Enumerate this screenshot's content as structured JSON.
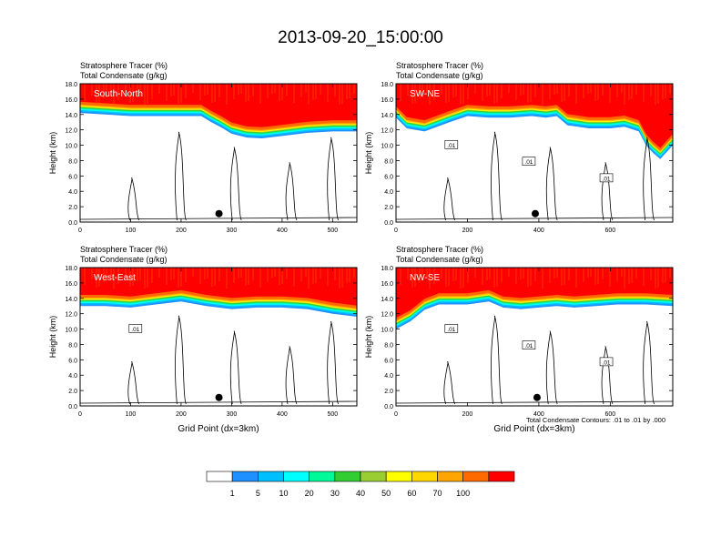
{
  "page_title": "2013-09-20_15:00:00",
  "colorbar": {
    "labels": [
      "1",
      "5",
      "10",
      "20",
      "30",
      "40",
      "50",
      "60",
      "70",
      "100"
    ],
    "colors": [
      "#ffffff",
      "#1e90ff",
      "#00bfff",
      "#00ffff",
      "#00fa9a",
      "#32cd32",
      "#9acd32",
      "#ffff00",
      "#ffd700",
      "#ffa500",
      "#ff6a00",
      "#ff0000"
    ]
  },
  "contour_note": "Total Condensate Contours: .01 to .01 by .000",
  "chart_data": [
    {
      "type": "heatmap",
      "panel": "South-North",
      "title_line1": "Stratosphere Tracer   (%)",
      "title_line2": "Total Condensate   (g/kg)",
      "ylabel": "Height (km)",
      "xlabel": "",
      "xlim": [
        0,
        548
      ],
      "ylim": [
        0,
        18
      ],
      "xticks": [
        "0",
        "100",
        "200",
        "300",
        "400",
        "500"
      ],
      "yticks": [
        "0.0",
        "2.0",
        "4.0",
        "6.0",
        "8.0",
        "10.0",
        "12.0",
        "14.0",
        "16.0",
        "18.0"
      ],
      "contour_labels": [],
      "marker_x": 275,
      "marker_y": 1.1,
      "tropopause": [
        [
          0,
          15.2
        ],
        [
          100,
          14.8
        ],
        [
          200,
          14.8
        ],
        [
          240,
          14.8
        ],
        [
          260,
          14.0
        ],
        [
          280,
          13.3
        ],
        [
          300,
          12.5
        ],
        [
          330,
          12.0
        ],
        [
          360,
          11.9
        ],
        [
          400,
          12.2
        ],
        [
          450,
          12.6
        ],
        [
          500,
          12.8
        ],
        [
          548,
          12.8
        ]
      ]
    },
    {
      "type": "heatmap",
      "panel": "SW-NE",
      "title_line1": "Stratosphere Tracer   (%)",
      "title_line2": "Total Condensate   (g/kg)",
      "ylabel": "Height (km)",
      "xlabel": "",
      "xlim": [
        0,
        775
      ],
      "ylim": [
        0,
        18
      ],
      "xticks": [
        "0",
        "200",
        "400",
        "600"
      ],
      "yticks": [
        "0.0",
        "2.0",
        "4.0",
        "6.0",
        "8.0",
        "10.0",
        "12.0",
        "14.0",
        "16.0",
        "18.0"
      ],
      "contour_labels": [
        ".01",
        ".01",
        ".01"
      ],
      "marker_x": 390,
      "marker_y": 1.1,
      "tropopause": [
        [
          0,
          14.6
        ],
        [
          30,
          13.2
        ],
        [
          80,
          12.8
        ],
        [
          150,
          14.0
        ],
        [
          200,
          14.8
        ],
        [
          260,
          14.6
        ],
        [
          320,
          14.6
        ],
        [
          380,
          14.8
        ],
        [
          420,
          14.6
        ],
        [
          450,
          14.8
        ],
        [
          480,
          13.6
        ],
        [
          540,
          13.2
        ],
        [
          600,
          13.2
        ],
        [
          640,
          13.4
        ],
        [
          680,
          12.8
        ],
        [
          700,
          11.0
        ],
        [
          720,
          10.0
        ],
        [
          740,
          9.2
        ],
        [
          775,
          11.0
        ]
      ]
    },
    {
      "type": "heatmap",
      "panel": "West-East",
      "title_line1": "Stratosphere Tracer   (%)",
      "title_line2": "Total Condensate   (g/kg)",
      "ylabel": "Height (km)",
      "xlabel": "Grid Point (dx=3km)",
      "xlim": [
        0,
        548
      ],
      "ylim": [
        0,
        18
      ],
      "xticks": [
        "0",
        "100",
        "200",
        "300",
        "400",
        "500"
      ],
      "yticks": [
        "0.0",
        "2.0",
        "4.0",
        "6.0",
        "8.0",
        "10.0",
        "12.0",
        "14.0",
        "16.0",
        "18.0"
      ],
      "contour_labels": [
        ".01"
      ],
      "marker_x": 275,
      "marker_y": 1.1,
      "tropopause": [
        [
          0,
          14.0
        ],
        [
          50,
          14.0
        ],
        [
          100,
          13.8
        ],
        [
          150,
          14.2
        ],
        [
          200,
          14.6
        ],
        [
          250,
          14.0
        ],
        [
          300,
          13.6
        ],
        [
          350,
          13.8
        ],
        [
          400,
          13.8
        ],
        [
          450,
          13.6
        ],
        [
          500,
          13.0
        ],
        [
          548,
          12.6
        ]
      ]
    },
    {
      "type": "heatmap",
      "panel": "NW-SE",
      "title_line1": "Stratosphere Tracer   (%)",
      "title_line2": "Total Condensate   (g/kg)",
      "ylabel": "Height (km)",
      "xlabel": "Grid Point (dx=3km)",
      "xlim": [
        0,
        775
      ],
      "ylim": [
        0,
        18
      ],
      "xticks": [
        "0",
        "200",
        "400",
        "600"
      ],
      "yticks": [
        "0.0",
        "2.0",
        "4.0",
        "6.0",
        "8.0",
        "10.0",
        "12.0",
        "14.0",
        "16.0",
        "18.0"
      ],
      "contour_labels": [
        ".01",
        ".01",
        ".01"
      ],
      "marker_x": 395,
      "marker_y": 1.1,
      "tropopause": [
        [
          0,
          11.0
        ],
        [
          40,
          12.0
        ],
        [
          80,
          13.5
        ],
        [
          120,
          14.2
        ],
        [
          200,
          14.2
        ],
        [
          260,
          14.6
        ],
        [
          300,
          13.8
        ],
        [
          350,
          13.6
        ],
        [
          400,
          13.8
        ],
        [
          450,
          14.0
        ],
        [
          500,
          13.8
        ],
        [
          560,
          14.0
        ],
        [
          620,
          14.2
        ],
        [
          700,
          14.2
        ],
        [
          775,
          14.0
        ]
      ]
    }
  ]
}
